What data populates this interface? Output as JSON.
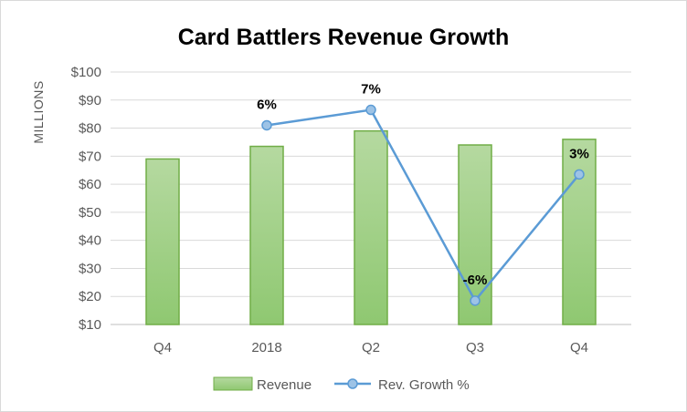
{
  "chart_data": {
    "type": "bar+line",
    "title": "Card Battlers Revenue Growth",
    "ylabel": "MILLIONS",
    "xlabel": "",
    "categories": [
      "Q4",
      "2018",
      "Q2",
      "Q3",
      "Q4"
    ],
    "ylim": [
      10,
      100
    ],
    "yticks": [
      10,
      20,
      30,
      40,
      50,
      60,
      70,
      80,
      90,
      100
    ],
    "ytick_labels": [
      "$10",
      "$20",
      "$30",
      "$40",
      "$50",
      "$60",
      "$70",
      "$80",
      "$90",
      "$100"
    ],
    "gridlines": true,
    "series": [
      {
        "name": "Revenue",
        "kind": "bar",
        "values": [
          69,
          73.5,
          79,
          74,
          76
        ],
        "color": "#A9D18E",
        "border_color": "#70AD47"
      },
      {
        "name": "Rev. Growth %",
        "kind": "line",
        "values": [
          null,
          81,
          86.5,
          18.5,
          63.5
        ],
        "data_labels": [
          null,
          "6%",
          "7%",
          "-6%",
          "3%"
        ],
        "color": "#5B9BD5",
        "marker_fill": "#9DC3E6"
      }
    ],
    "legend_position": "bottom"
  }
}
